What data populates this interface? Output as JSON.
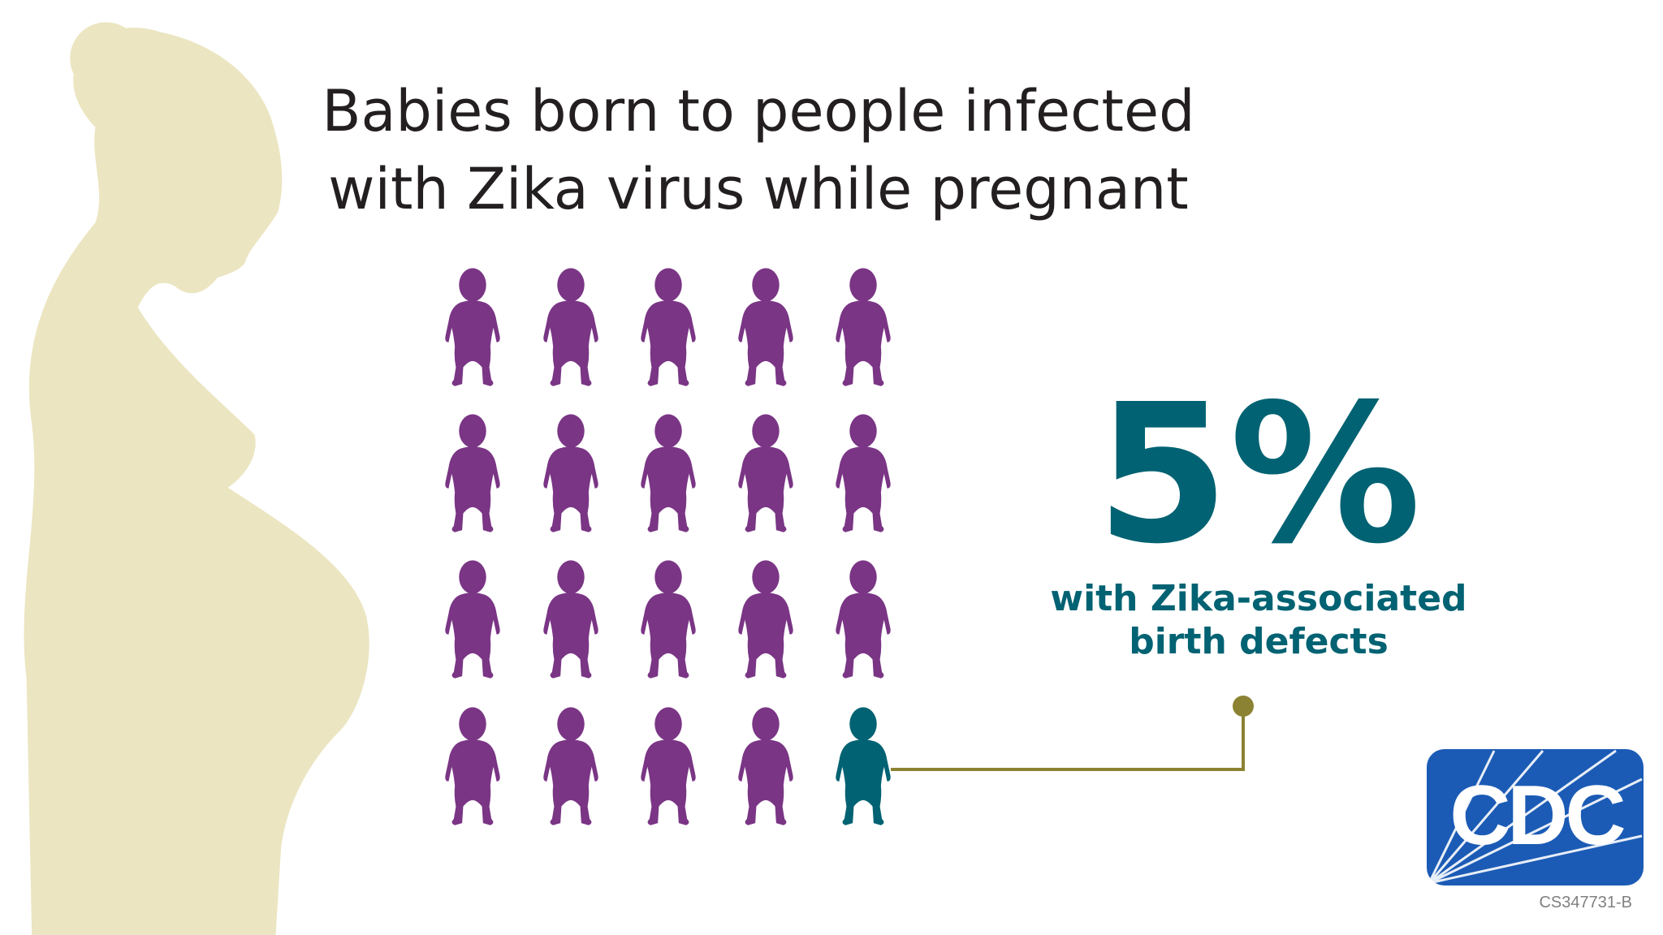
{
  "title": [
    "Babies born to people infected",
    "with Zika virus while pregnant"
  ],
  "stat": {
    "value": "5%",
    "label": [
      "with Zika-associated",
      "birth defects"
    ]
  },
  "logo": "CDC",
  "code": "CS347731-B"
}
